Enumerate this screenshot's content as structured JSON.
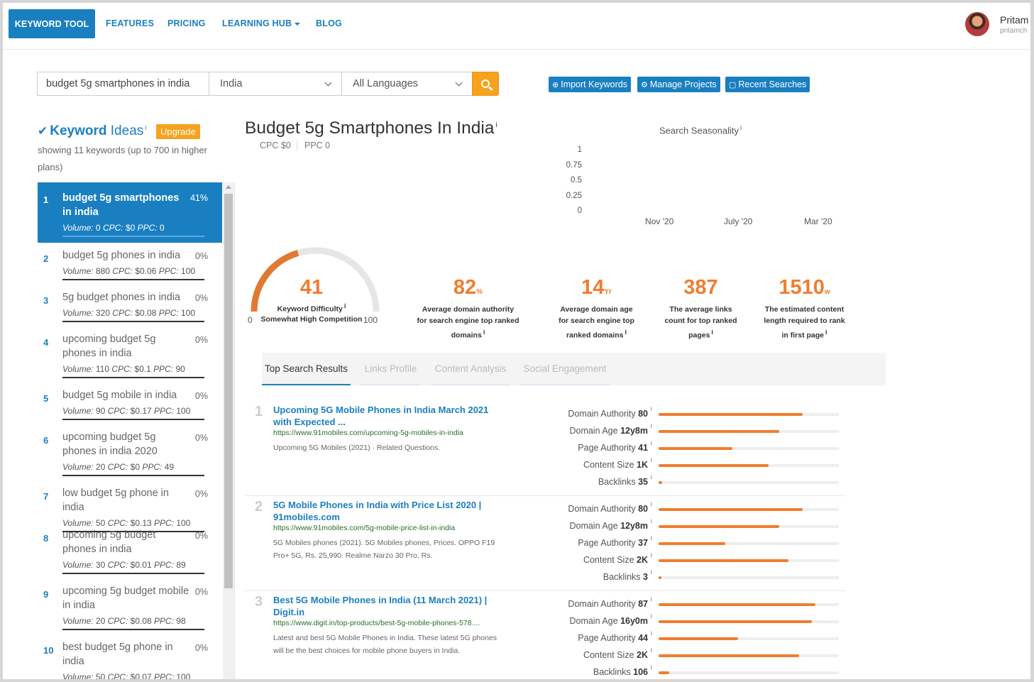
{
  "nav": {
    "brand": "KEYWORD TOOL",
    "links": [
      "FEATURES",
      "PRICING",
      "LEARNING HUB",
      "BLOG"
    ],
    "user_name": "Pritam",
    "user_email": "pritamch"
  },
  "search": {
    "query": "budget 5g smartphones in india",
    "country": "India",
    "language": "All Languages"
  },
  "actions": [
    "Import Keywords",
    "Manage Projects",
    "Recent Searches"
  ],
  "ideas": {
    "title_bold": "Keyword",
    "title_rest": "Ideas",
    "info": "i",
    "upgrade": "Upgrade",
    "subtitle": "showing 11 keywords (up to 700 in higher plans)",
    "items": [
      {
        "num": "1",
        "keyword": "budget 5g smartphones in india",
        "pct": "41%",
        "volume": "0",
        "cpc": "$0",
        "ppc": "0"
      },
      {
        "num": "2",
        "keyword": "budget 5g phones in india",
        "pct": "0%",
        "volume": "880",
        "cpc": "$0.06",
        "ppc": "100"
      },
      {
        "num": "3",
        "keyword": "5g budget phones in india",
        "pct": "0%",
        "volume": "320",
        "cpc": "$0.08",
        "ppc": "100"
      },
      {
        "num": "4",
        "keyword": "upcoming budget 5g phones in india",
        "pct": "0%",
        "volume": "110",
        "cpc": "$0.1",
        "ppc": "90"
      },
      {
        "num": "5",
        "keyword": "budget 5g mobile in india",
        "pct": "0%",
        "volume": "90",
        "cpc": "$0.17",
        "ppc": "100"
      },
      {
        "num": "6",
        "keyword": "upcoming budget 5g phones in india 2020",
        "pct": "0%",
        "volume": "20",
        "cpc": "$0",
        "ppc": "49"
      },
      {
        "num": "7",
        "keyword": "low budget 5g phone in india",
        "pct": "0%",
        "volume": "50",
        "cpc": "$0.13",
        "ppc": "100"
      },
      {
        "num": "8",
        "keyword": "upcoming 5g budget phones in india",
        "pct": "0%",
        "volume": "30",
        "cpc": "$0.01",
        "ppc": "89"
      },
      {
        "num": "9",
        "keyword": "upcoming 5g budget mobile in india",
        "pct": "0%",
        "volume": "20",
        "cpc": "$0.08",
        "ppc": "98"
      },
      {
        "num": "10",
        "keyword": "best budget 5g phone in india",
        "pct": "0%",
        "volume": "50",
        "cpc": "$0.07",
        "ppc": "100"
      }
    ],
    "meta_labels": {
      "volume": "Volume:",
      "cpc": "CPC:",
      "ppc": "PPC:"
    }
  },
  "main": {
    "title": "Budget 5g Smartphones In India",
    "cpc": "CPC $0",
    "ppc": "PPC 0"
  },
  "chart_data": {
    "type": "line",
    "title": "Search Seasonality",
    "x": [
      "Nov '20",
      "July '20",
      "Mar '20"
    ],
    "yticks": [
      "1",
      "0.75",
      "0.5",
      "0.25",
      "0"
    ],
    "ylim": [
      0,
      1
    ],
    "series": []
  },
  "difficulty": {
    "value": "41",
    "label": "Keyword Difficulty",
    "competition": "Somewhat High Competition",
    "min": "0",
    "max": "100",
    "fraction": 0.41
  },
  "stats": [
    {
      "value": "82",
      "unit": "%",
      "desc": "Average domain authority for search engine top ranked domains"
    },
    {
      "value": "14",
      "unit": "Yr",
      "desc": "Average domain age for search engine top ranked domains"
    },
    {
      "value": "387",
      "unit": "",
      "desc": "The average links count for top ranked pages"
    },
    {
      "value": "1510",
      "unit": "w",
      "desc": "The estimated content length required to rank in first page"
    }
  ],
  "tabs": [
    "Top Search Results",
    "Links Profile",
    "Content Analysis",
    "Social Engagement"
  ],
  "results": [
    {
      "num": "1",
      "title": "Upcoming 5G Mobile Phones in India March 2021 with Expected ...",
      "url": "https://www.91mobiles.com/upcoming-5g-mobiles-in-india",
      "snippet": "Upcoming 5G Mobiles (2021) · Related Questions.",
      "metrics": [
        {
          "label": "Domain Authority",
          "value": "80",
          "fraction": 0.8
        },
        {
          "label": "Domain Age",
          "value": "12y8m",
          "fraction": 0.67
        },
        {
          "label": "Page Authority",
          "value": "41",
          "fraction": 0.41
        },
        {
          "label": "Content Size",
          "value": "1K",
          "fraction": 0.61
        },
        {
          "label": "Backlinks",
          "value": "35",
          "fraction": 0.02
        }
      ]
    },
    {
      "num": "2",
      "title": "5G Mobile Phones in India with Price List 2020 | 91mobiles.com",
      "url": "https://www.91mobiles.com/5g-mobile-price-list-in-india",
      "snippet": "5G Mobiles phones (2021). 5G Mobiles phones, Prices. OPPO F19 Pro+ 5G, Rs. 25,990. Realme Narzo 30 Pro, Rs.",
      "metrics": [
        {
          "label": "Domain Authority",
          "value": "80",
          "fraction": 0.8
        },
        {
          "label": "Domain Age",
          "value": "12y8m",
          "fraction": 0.67
        },
        {
          "label": "Page Authority",
          "value": "37",
          "fraction": 0.37
        },
        {
          "label": "Content Size",
          "value": "2K",
          "fraction": 0.72
        },
        {
          "label": "Backlinks",
          "value": "3",
          "fraction": 0.005
        }
      ]
    },
    {
      "num": "3",
      "title": "Best 5G Mobile Phones in India (11 March 2021) | Digit.in",
      "url": "https://www.digit.in/top-products/best-5g-mobile-phones-578....",
      "snippet": "Latest and best 5G Mobile Phones in India. These latest 5G phones will be the best choices for mobile phone buyers in India.",
      "metrics": [
        {
          "label": "Domain Authority",
          "value": "87",
          "fraction": 0.87
        },
        {
          "label": "Domain Age",
          "value": "16y0m",
          "fraction": 0.85
        },
        {
          "label": "Page Authority",
          "value": "44",
          "fraction": 0.44
        },
        {
          "label": "Content Size",
          "value": "2K",
          "fraction": 0.78
        },
        {
          "label": "Backlinks",
          "value": "106",
          "fraction": 0.06
        }
      ]
    }
  ]
}
